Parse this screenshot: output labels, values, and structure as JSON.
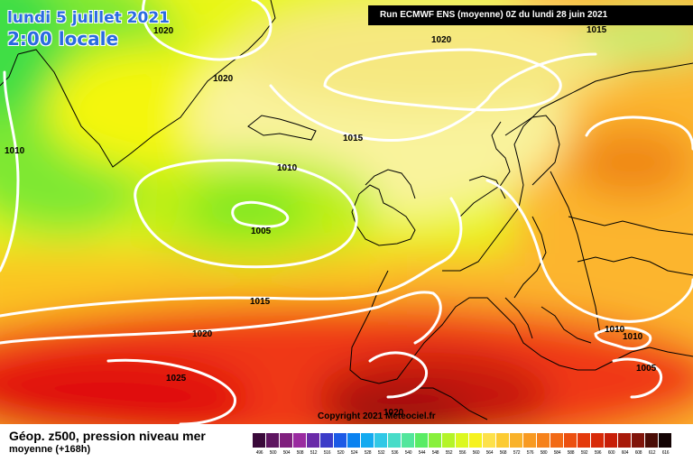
{
  "header": {
    "date": "lundi 5 juillet 2021",
    "time": "2:00 locale",
    "run": "Run ECMWF ENS (moyenne) 0Z du lundi 28 juin 2021"
  },
  "copyright": "Copyright 2021 Meteociel.fr",
  "footer": {
    "title": "Géop. z500, pression niveau mer",
    "subtitle": "moyenne   (+168h)"
  },
  "isobar_labels": [
    "1020",
    "1020",
    "1015",
    "1020",
    "1015",
    "1010",
    "1010",
    "1005",
    "1015",
    "1020",
    "1025",
    "1020",
    "1010",
    "1010",
    "1005"
  ],
  "scale": {
    "values": [
      "496",
      "500",
      "504",
      "508",
      "512",
      "516",
      "520",
      "524",
      "528",
      "532",
      "536",
      "540",
      "544",
      "548",
      "552",
      "556",
      "560",
      "564",
      "568",
      "572",
      "576",
      "580",
      "584",
      "588",
      "592",
      "596",
      "600",
      "604",
      "608",
      "612",
      "616"
    ],
    "colors": [
      "#3a0a3a",
      "#5e1560",
      "#80207e",
      "#9a2aa0",
      "#6a2aa8",
      "#3c3cc8",
      "#1c5ae6",
      "#0a82f0",
      "#14aaf0",
      "#30c8e6",
      "#48dcc8",
      "#52e69c",
      "#5aec64",
      "#88f03c",
      "#b4f428",
      "#dcf820",
      "#f6f21e",
      "#fde14a",
      "#fccb32",
      "#f9b22a",
      "#f89a22",
      "#f6821c",
      "#f26a16",
      "#ec5010",
      "#e43a0c",
      "#d82a08",
      "#c81e08",
      "#a81a0a",
      "#80140a",
      "#4a0c06",
      "#140404"
    ]
  },
  "colors": {
    "high_heights": "#e8141a",
    "low_heights": "#7ef02a",
    "isobars": "#ffffff",
    "coastlines": "#000000"
  }
}
